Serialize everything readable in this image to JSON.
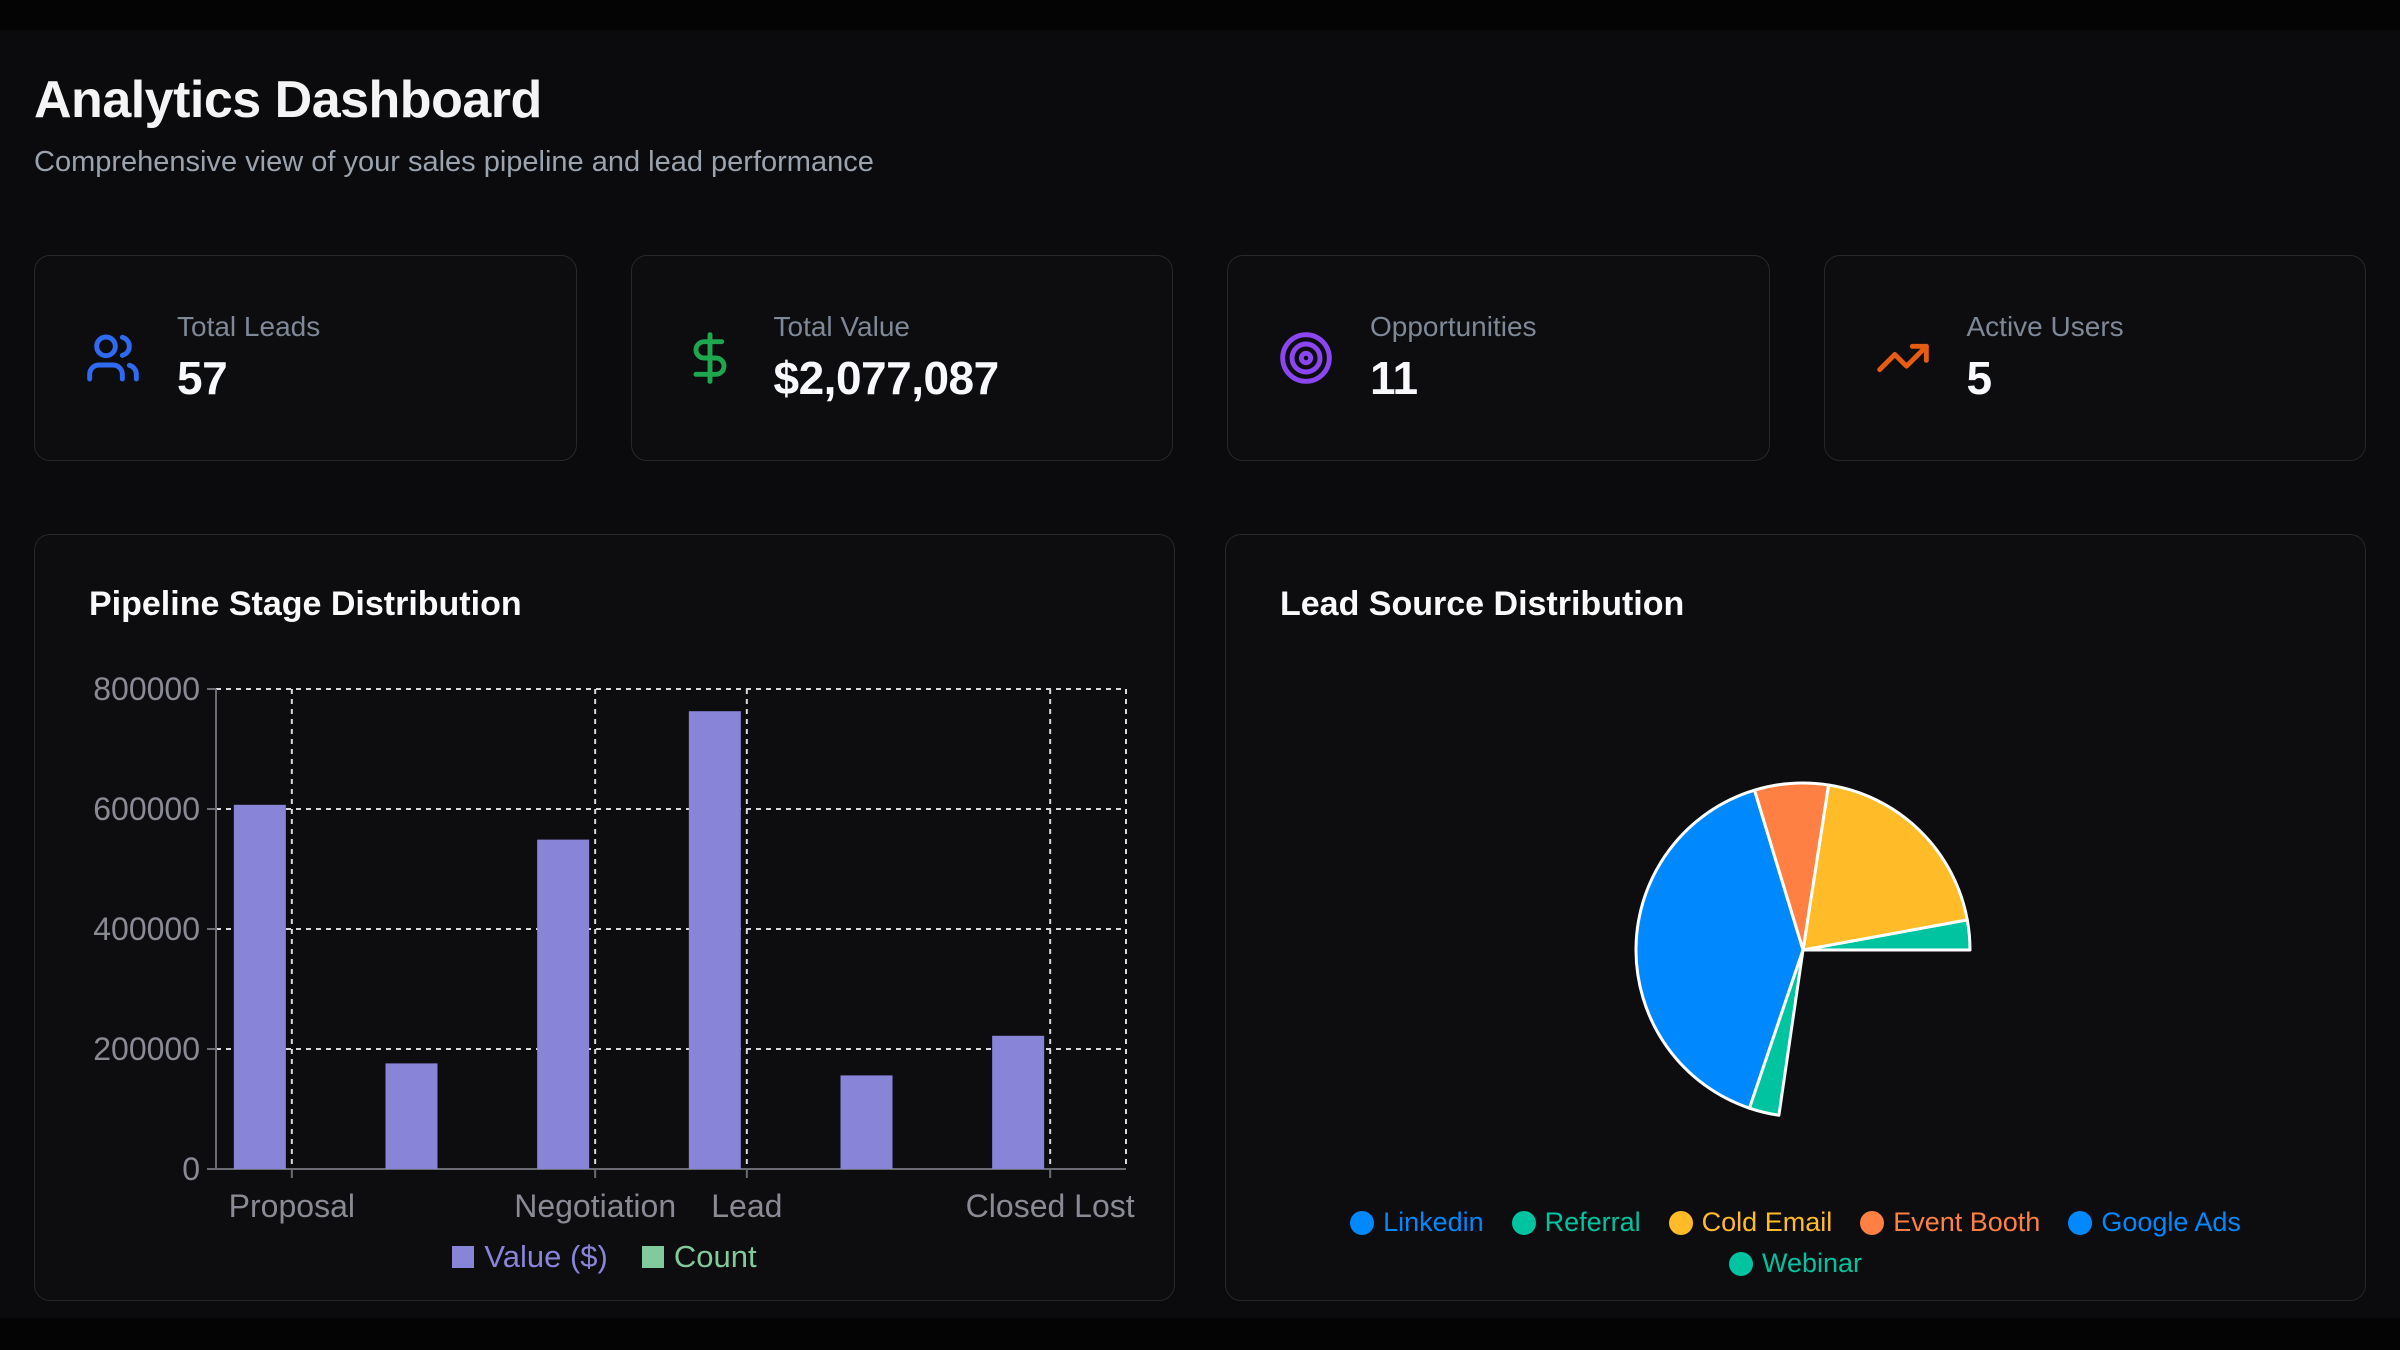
{
  "page": {
    "title": "Analytics Dashboard",
    "subtitle": "Comprehensive view of your sales pipeline and lead performance"
  },
  "stat_cards": [
    {
      "label": "Total Leads",
      "value": "57",
      "icon": "users-icon",
      "color": "#2f6bf2"
    },
    {
      "label": "Total Value",
      "value": "$2,077,087",
      "icon": "dollar-sign-icon",
      "color": "#1fa750"
    },
    {
      "label": "Opportunities",
      "value": "11",
      "icon": "target-icon",
      "color": "#8b46f2"
    },
    {
      "label": "Active Users",
      "value": "5",
      "icon": "trending-up-icon",
      "color": "#e65c12"
    }
  ],
  "chart_data": [
    {
      "type": "bar",
      "title": "Pipeline Stage Distribution",
      "categories": [
        "Proposal",
        "",
        "Negotiation",
        "Lead",
        "",
        "Closed Lost"
      ],
      "visible_tick_indexes": [
        0,
        2,
        3,
        5
      ],
      "series": [
        {
          "name": "Value ($)",
          "color": "#8884d8",
          "values": [
            607000,
            176000,
            549000,
            763000,
            156000,
            222000
          ]
        },
        {
          "name": "Count",
          "color": "#82ca9d",
          "values": [],
          "note": "count bars too small to be visible at dollar scale"
        }
      ],
      "ylim": [
        0,
        800000
      ],
      "yticks": [
        0,
        200000,
        400000,
        600000,
        800000
      ],
      "grid": "dashed",
      "legend_position": "bottom",
      "grid_color": "#d9d9dd",
      "axis_color": "#6b6b73",
      "tick_color": "#8a8a94"
    },
    {
      "type": "pie",
      "title": "Lead Source Distribution",
      "slices": [
        {
          "label": "Referral",
          "color": "#00C49F",
          "start_deg": 0,
          "end_deg": 10.4,
          "percent": 2.9
        },
        {
          "label": "Cold Email",
          "color": "#FFBB28",
          "start_deg": 10.4,
          "end_deg": 81.2,
          "percent": 19.7
        },
        {
          "label": "Event Booth",
          "color": "#FF8042",
          "start_deg": 81.2,
          "end_deg": 106.9,
          "percent": 7.1
        },
        {
          "label": "Linkedin",
          "color": "#0088FE",
          "start_deg": 106.9,
          "end_deg": 251.3,
          "percent": 40.1
        },
        {
          "label": "Webinar",
          "color": "#00C49F",
          "start_deg": 251.3,
          "end_deg": 261.7,
          "percent": 2.9
        }
      ],
      "empty_sector": {
        "start_deg": 261.7,
        "end_deg": 360,
        "note": "no slice rendered in this sector (Google Ads not visible in pie)"
      },
      "legend_rows": [
        [
          {
            "label": "Linkedin",
            "color": "#0088FE"
          },
          {
            "label": "Referral",
            "color": "#00C49F"
          },
          {
            "label": "Cold Email",
            "color": "#FFBB28"
          },
          {
            "label": "Event Booth",
            "color": "#FF8042"
          },
          {
            "label": "Google Ads",
            "color": "#0088FE"
          }
        ],
        [
          {
            "label": "Webinar",
            "color": "#00C49F"
          }
        ]
      ],
      "legend_position": "bottom"
    }
  ]
}
